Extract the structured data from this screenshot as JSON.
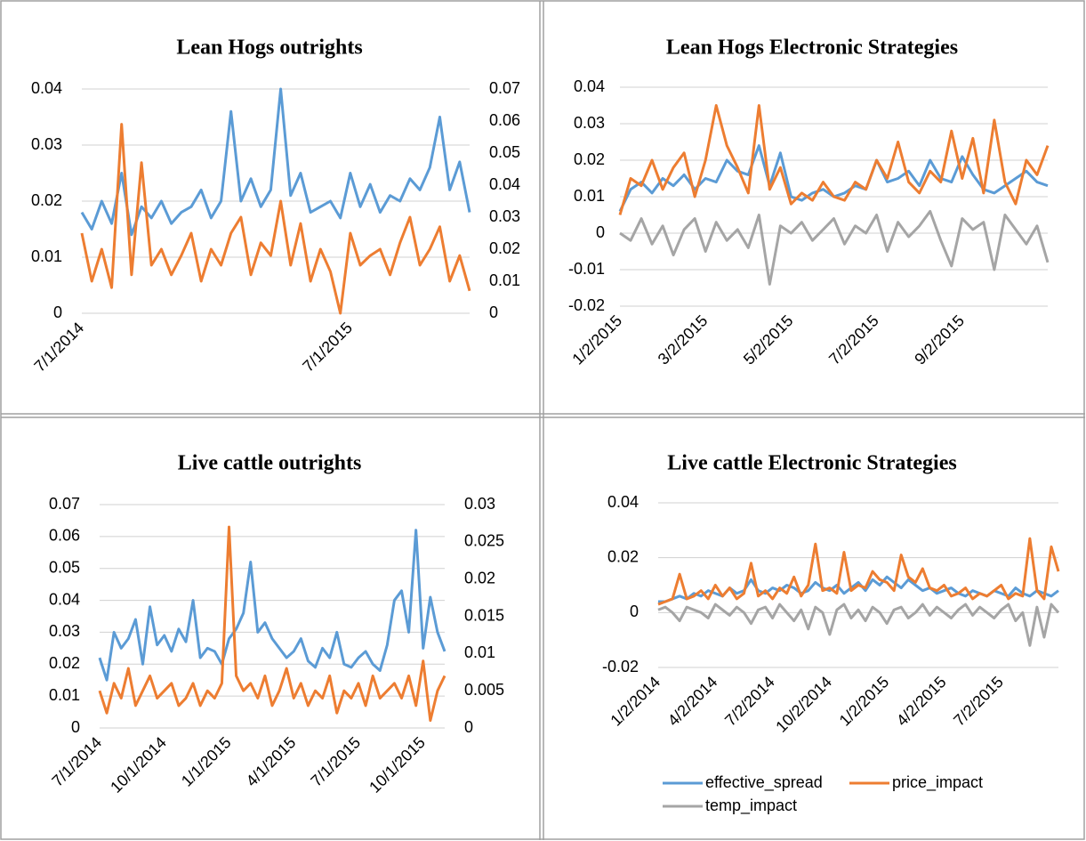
{
  "chart_data": [
    {
      "type": "line",
      "title": "Lean Hogs outrights",
      "categories": [
        "7/1/2014",
        null,
        null,
        null,
        null,
        null,
        null,
        null,
        null,
        null,
        null,
        null,
        null,
        null,
        null,
        null,
        null,
        null,
        null,
        null,
        null,
        null,
        null,
        null,
        null,
        null,
        null,
        "7/1/2015",
        null,
        null,
        null,
        null,
        null,
        null,
        null,
        null,
        null,
        null,
        null,
        null
      ],
      "series": [
        {
          "color": "#5b9bd5",
          "values": [
            0.018,
            0.015,
            0.02,
            0.016,
            0.025,
            0.014,
            0.019,
            0.017,
            0.02,
            0.016,
            0.018,
            0.019,
            0.022,
            0.017,
            0.02,
            0.036,
            0.02,
            0.024,
            0.019,
            0.022,
            0.04,
            0.021,
            0.025,
            0.018,
            0.019,
            0.02,
            0.017,
            0.025,
            0.019,
            0.023,
            0.018,
            0.021,
            0.02,
            0.024,
            0.022,
            0.026,
            0.035,
            0.022,
            0.027,
            0.018
          ]
        },
        {
          "color": "#ed7d31",
          "axis": "y2",
          "values": [
            0.025,
            0.01,
            0.02,
            0.008,
            0.059,
            0.012,
            0.047,
            0.015,
            0.02,
            0.012,
            0.018,
            0.025,
            0.01,
            0.02,
            0.015,
            0.025,
            0.03,
            0.012,
            0.022,
            0.018,
            0.035,
            0.015,
            0.028,
            0.01,
            0.02,
            0.013,
            0,
            0.025,
            0.015,
            0.018,
            0.02,
            0.012,
            0.022,
            0.03,
            0.015,
            0.02,
            0.027,
            0.01,
            0.018,
            0.007
          ]
        }
      ],
      "ylim": [
        0,
        0.04
      ],
      "yticks": [
        0,
        0.01,
        0.02,
        0.03,
        0.04
      ],
      "y2lim": [
        0,
        0.07
      ],
      "y2ticks": [
        0,
        0.01,
        0.02,
        0.03,
        0.04,
        0.05,
        0.06,
        0.07
      ],
      "grid": true
    },
    {
      "type": "line",
      "title": "Lean Hogs Electronic Strategies",
      "categories": [
        "1/2/2015",
        null,
        null,
        null,
        null,
        null,
        null,
        null,
        "3/2/2015",
        null,
        null,
        null,
        null,
        null,
        null,
        null,
        "5/2/2015",
        null,
        null,
        null,
        null,
        null,
        null,
        null,
        "7/2/2015",
        null,
        null,
        null,
        null,
        null,
        null,
        null,
        "9/2/2015",
        null,
        null,
        null,
        null,
        null,
        null,
        null,
        null
      ],
      "series": [
        {
          "color": "#5b9bd5",
          "values": [
            0.006,
            0.012,
            0.014,
            0.011,
            0.015,
            0.013,
            0.016,
            0.012,
            0.015,
            0.014,
            0.02,
            0.017,
            0.016,
            0.024,
            0.013,
            0.022,
            0.01,
            0.009,
            0.011,
            0.012,
            0.01,
            0.011,
            0.013,
            0.012,
            0.02,
            0.014,
            0.015,
            0.017,
            0.013,
            0.02,
            0.015,
            0.014,
            0.021,
            0.016,
            0.012,
            0.011,
            0.013,
            0.015,
            0.017,
            0.014,
            0.013
          ]
        },
        {
          "color": "#ed7d31",
          "values": [
            0.005,
            0.015,
            0.013,
            0.02,
            0.012,
            0.018,
            0.022,
            0.01,
            0.02,
            0.035,
            0.024,
            0.018,
            0.011,
            0.035,
            0.012,
            0.018,
            0.008,
            0.011,
            0.009,
            0.014,
            0.01,
            0.009,
            0.014,
            0.012,
            0.02,
            0.015,
            0.025,
            0.014,
            0.011,
            0.017,
            0.014,
            0.028,
            0.015,
            0.026,
            0.011,
            0.031,
            0.014,
            0.008,
            0.02,
            0.016,
            0.024
          ]
        },
        {
          "color": "#a5a5a5",
          "values": [
            0,
            -0.002,
            0.004,
            -0.003,
            0.002,
            -0.006,
            0.001,
            0.004,
            -0.005,
            0.003,
            -0.002,
            0.001,
            -0.004,
            0.005,
            -0.014,
            0.002,
            0,
            0.003,
            -0.002,
            0.001,
            0.004,
            -0.003,
            0.002,
            0,
            0.005,
            -0.005,
            0.003,
            -0.001,
            0.002,
            0.006,
            -0.002,
            -0.009,
            0.004,
            0.001,
            0.003,
            -0.01,
            0.005,
            0.001,
            -0.003,
            0.002,
            -0.008
          ]
        }
      ],
      "ylim": [
        -0.02,
        0.04
      ],
      "yticks": [
        -0.02,
        -0.01,
        0,
        0.01,
        0.02,
        0.03,
        0.04
      ],
      "grid": true
    },
    {
      "type": "line",
      "title": "Live cattle outrights",
      "categories": [
        "7/1/2014",
        null,
        null,
        null,
        null,
        null,
        null,
        null,
        null,
        "10/1/2014",
        null,
        null,
        null,
        null,
        null,
        null,
        null,
        null,
        "1/1/2015",
        null,
        null,
        null,
        null,
        null,
        null,
        null,
        null,
        "4/1/2015",
        null,
        null,
        null,
        null,
        null,
        null,
        null,
        null,
        "7/1/2015",
        null,
        null,
        null,
        null,
        null,
        null,
        null,
        null,
        "10/1/2015",
        null,
        null,
        null
      ],
      "series": [
        {
          "color": "#5b9bd5",
          "values": [
            0.022,
            0.015,
            0.03,
            0.025,
            0.028,
            0.034,
            0.02,
            0.038,
            0.026,
            0.029,
            0.024,
            0.031,
            0.027,
            0.04,
            0.022,
            0.025,
            0.024,
            0.02,
            0.028,
            0.031,
            0.036,
            0.052,
            0.03,
            0.033,
            0.028,
            0.025,
            0.022,
            0.024,
            0.028,
            0.021,
            0.019,
            0.025,
            0.022,
            0.03,
            0.02,
            0.019,
            0.022,
            0.024,
            0.02,
            0.018,
            0.026,
            0.04,
            0.043,
            0.03,
            0.062,
            0.025,
            0.041,
            0.03,
            0.024
          ]
        },
        {
          "color": "#ed7d31",
          "axis": "y2",
          "values": [
            0.005,
            0.002,
            0.006,
            0.004,
            0.008,
            0.003,
            0.005,
            0.007,
            0.004,
            0.005,
            0.006,
            0.003,
            0.004,
            0.006,
            0.003,
            0.005,
            0.004,
            0.006,
            0.027,
            0.007,
            0.005,
            0.006,
            0.004,
            0.007,
            0.003,
            0.005,
            0.008,
            0.004,
            0.006,
            0.003,
            0.005,
            0.004,
            0.007,
            0.002,
            0.005,
            0.004,
            0.006,
            0.003,
            0.007,
            0.004,
            0.005,
            0.006,
            0.004,
            0.007,
            0.003,
            0.009,
            0.001,
            0.005,
            0.007
          ]
        }
      ],
      "ylim": [
        0,
        0.07
      ],
      "yticks": [
        0,
        0.01,
        0.02,
        0.03,
        0.04,
        0.05,
        0.06,
        0.07
      ],
      "y2lim": [
        0,
        0.03
      ],
      "y2ticks": [
        0,
        0.005,
        0.01,
        0.015,
        0.02,
        0.025,
        0.03
      ],
      "grid": true
    },
    {
      "type": "line",
      "title": "Live cattle Electronic Strategies",
      "categories": [
        "1/2/2014",
        null,
        null,
        null,
        null,
        null,
        null,
        null,
        "4/2/2014",
        null,
        null,
        null,
        null,
        null,
        null,
        null,
        "7/2/2014",
        null,
        null,
        null,
        null,
        null,
        null,
        null,
        "10/2/2014",
        null,
        null,
        null,
        null,
        null,
        null,
        null,
        "1/2/2015",
        null,
        null,
        null,
        null,
        null,
        null,
        null,
        "4/2/2015",
        null,
        null,
        null,
        null,
        null,
        null,
        null,
        "7/2/2015",
        null,
        null,
        null,
        null,
        null,
        null,
        null,
        null
      ],
      "series": [
        {
          "name": "effective_spread",
          "color": "#5b9bd5",
          "values": [
            0.004,
            0.004,
            0.005,
            0.006,
            0.005,
            0.007,
            0.006,
            0.008,
            0.007,
            0.006,
            0.009,
            0.007,
            0.008,
            0.012,
            0.008,
            0.007,
            0.009,
            0.008,
            0.01,
            0.009,
            0.007,
            0.008,
            0.011,
            0.009,
            0.008,
            0.01,
            0.007,
            0.009,
            0.011,
            0.008,
            0.012,
            0.01,
            0.013,
            0.011,
            0.009,
            0.012,
            0.01,
            0.008,
            0.009,
            0.007,
            0.008,
            0.009,
            0.007,
            0.006,
            0.008,
            0.007,
            0.006,
            0.008,
            0.007,
            0.006,
            0.009,
            0.007,
            0.006,
            0.008,
            0.007,
            0.006,
            0.008
          ]
        },
        {
          "name": "price_impact",
          "color": "#ed7d31",
          "values": [
            0.003,
            0.004,
            0.005,
            0.014,
            0.005,
            0.006,
            0.008,
            0.005,
            0.01,
            0.006,
            0.009,
            0.005,
            0.007,
            0.018,
            0.006,
            0.008,
            0.005,
            0.009,
            0.007,
            0.013,
            0.006,
            0.01,
            0.025,
            0.008,
            0.009,
            0.007,
            0.022,
            0.008,
            0.01,
            0.009,
            0.015,
            0.012,
            0.011,
            0.008,
            0.021,
            0.013,
            0.011,
            0.016,
            0.009,
            0.008,
            0.01,
            0.006,
            0.007,
            0.009,
            0.005,
            0.007,
            0.006,
            0.008,
            0.01,
            0.005,
            0.007,
            0.006,
            0.027,
            0.008,
            0.005,
            0.024,
            0.015
          ]
        },
        {
          "name": "temp_impact",
          "color": "#a5a5a5",
          "values": [
            0.001,
            0.002,
            0,
            -0.003,
            0.002,
            0.001,
            0,
            -0.002,
            0.003,
            0.001,
            -0.001,
            0.002,
            0,
            -0.004,
            0.001,
            0.002,
            -0.002,
            0.003,
            0,
            -0.003,
            0.001,
            -0.006,
            0.002,
            0,
            -0.008,
            0.001,
            0.003,
            -0.002,
            0.001,
            -0.003,
            0.002,
            0,
            -0.004,
            0.001,
            0.002,
            -0.002,
            0,
            0.003,
            -0.001,
            0.002,
            0,
            -0.002,
            0.001,
            0.003,
            -0.001,
            0.002,
            0,
            -0.002,
            0.001,
            0.003,
            -0.003,
            0,
            -0.012,
            0.002,
            -0.009,
            0.003,
            0
          ]
        }
      ],
      "ylim": [
        -0.02,
        0.04
      ],
      "yticks": [
        -0.02,
        0,
        0.02,
        0.04
      ],
      "grid": true,
      "legend": "bottom"
    }
  ]
}
